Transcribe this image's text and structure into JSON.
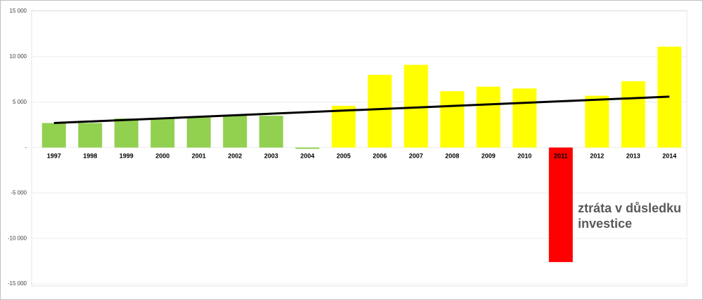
{
  "chart_data": {
    "type": "bar",
    "categories": [
      "1997",
      "1998",
      "1999",
      "2000",
      "2001",
      "2002",
      "2003",
      "2004",
      "2005",
      "2006",
      "2007",
      "2008",
      "2009",
      "2010",
      "2011",
      "2012",
      "2013",
      "2014"
    ],
    "values": [
      2700,
      2700,
      3200,
      3200,
      3300,
      3500,
      3500,
      -150,
      4600,
      8000,
      9100,
      6200,
      6700,
      6500,
      -12600,
      5700,
      7300,
      11100
    ],
    "colors": [
      "#92d050",
      "#92d050",
      "#92d050",
      "#92d050",
      "#92d050",
      "#92d050",
      "#92d050",
      "#92d050",
      "#ffff00",
      "#ffff00",
      "#ffff00",
      "#ffff00",
      "#ffff00",
      "#ffff00",
      "#ff0000",
      "#ffff00",
      "#ffff00",
      "#ffff00"
    ],
    "trendline": [
      2700,
      5600
    ],
    "trendline_color": "#000000",
    "ylim": [
      -15000,
      15000
    ],
    "yticks": [
      {
        "value": -15000,
        "label": "-15 000"
      },
      {
        "value": -10000,
        "label": "-10 000"
      },
      {
        "value": -5000,
        "label": "-5 000"
      },
      {
        "value": 0,
        "label": "-"
      },
      {
        "value": 5000,
        "label": "5 000"
      },
      {
        "value": 10000,
        "label": "10 000"
      },
      {
        "value": 15000,
        "label": "15 000"
      }
    ],
    "grid": true,
    "annotation": [
      "ztráta v důsledku",
      "investice"
    ]
  }
}
